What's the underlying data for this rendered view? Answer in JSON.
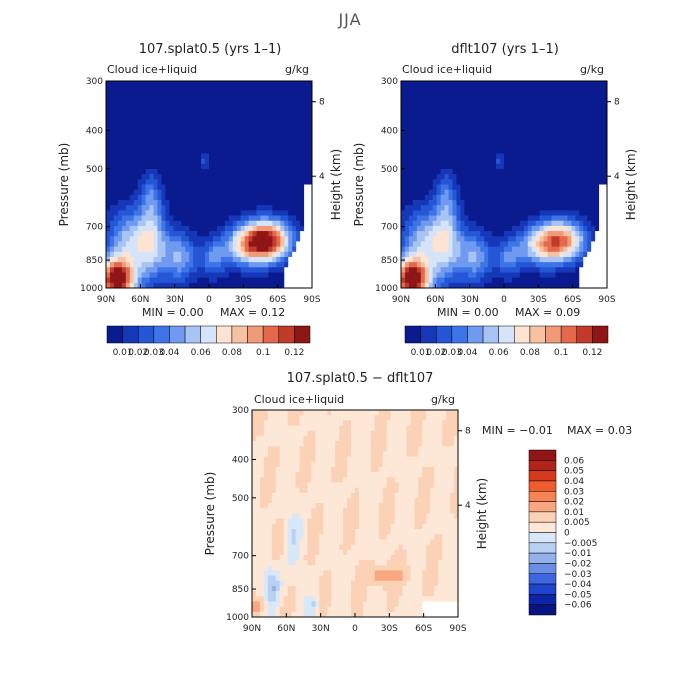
{
  "supertitle": "JJA",
  "panels": [
    {
      "id": "p1",
      "title": "107.splat0.5 (yrs 1–1)",
      "subtitle": "Cloud ice+liquid",
      "units": "g/kg",
      "min": "MIN =   0.00",
      "max": "MAX =   0.12"
    },
    {
      "id": "p2",
      "title": "dflt107 (yrs 1–1)",
      "subtitle": "Cloud ice+liquid",
      "units": "g/kg",
      "min": "MIN =   0.00",
      "max": "MAX =   0.09"
    },
    {
      "id": "p3",
      "title": "107.splat0.5 − dflt107",
      "subtitle": "Cloud ice+liquid",
      "units": "g/kg",
      "min": "MIN =  −0.01",
      "max": "MAX =   0.03"
    }
  ],
  "chart_data": [
    {
      "type": "heatmap",
      "title": "107.splat0.5 (yrs 1–1)",
      "subtitle": "Cloud ice+liquid",
      "units": "g/kg",
      "xlabel": "",
      "ylabel": "Pressure (mb)",
      "y2label": "Height (km)",
      "x_ticks": [
        "90N",
        "60N",
        "30N",
        "0",
        "30S",
        "60S",
        "90S"
      ],
      "y_ticks": [
        300,
        400,
        500,
        700,
        850,
        1000
      ],
      "y2_ticks": [
        8,
        4
      ],
      "ylim": [
        1000,
        300
      ],
      "xlim": [
        90,
        -90
      ],
      "colorbar_levels": [
        "0.01",
        "0.02",
        "0.03",
        "0.04",
        "0.06",
        "0.08",
        "0.1",
        "0.12"
      ],
      "min": 0.0,
      "max": 0.12
    },
    {
      "type": "heatmap",
      "title": "dflt107 (yrs 1–1)",
      "subtitle": "Cloud ice+liquid",
      "units": "g/kg",
      "xlabel": "",
      "ylabel": "Pressure (mb)",
      "y2label": "Height (km)",
      "x_ticks": [
        "90N",
        "60N",
        "30N",
        "0",
        "30S",
        "60S",
        "90S"
      ],
      "y_ticks": [
        300,
        400,
        500,
        700,
        850,
        1000
      ],
      "y2_ticks": [
        8,
        4
      ],
      "ylim": [
        1000,
        300
      ],
      "xlim": [
        90,
        -90
      ],
      "colorbar_levels": [
        "0.01",
        "0.02",
        "0.03",
        "0.04",
        "0.06",
        "0.08",
        "0.1",
        "0.12"
      ],
      "min": 0.0,
      "max": 0.09
    },
    {
      "type": "heatmap",
      "title": "107.splat0.5 − dflt107",
      "subtitle": "Cloud ice+liquid",
      "units": "g/kg",
      "xlabel": "",
      "ylabel": "Pressure (mb)",
      "y2label": "Height (km)",
      "x_ticks": [
        "90N",
        "60N",
        "30N",
        "0",
        "30S",
        "60S",
        "90S"
      ],
      "y_ticks": [
        300,
        400,
        500,
        700,
        850,
        1000
      ],
      "y2_ticks": [
        8,
        4
      ],
      "ylim": [
        1000,
        300
      ],
      "xlim": [
        90,
        -90
      ],
      "colorbar_levels": [
        "0.06",
        "0.05",
        "0.04",
        "0.03",
        "0.02",
        "0.01",
        "0.005",
        "0",
        "−0.005",
        "−0.01",
        "−0.02",
        "−0.03",
        "−0.04",
        "−0.05",
        "−0.06"
      ],
      "min": -0.01,
      "max": 0.03
    }
  ],
  "colors": {
    "seq": [
      "#0a1a8f",
      "#1638b8",
      "#2456d6",
      "#3d74e8",
      "#6f9af0",
      "#a8c4f4",
      "#d5e4f8",
      "#fde4d2",
      "#f7c2a2",
      "#f19a78",
      "#e4684c",
      "#c23a2a",
      "#8e1616"
    ],
    "diff": [
      "#8e1616",
      "#b32418",
      "#d63a1c",
      "#ef5c2e",
      "#f58455",
      "#f8a780",
      "#fbd2b6",
      "#fde8d8",
      "#d9e8f8",
      "#b8d0f2",
      "#93b2ec",
      "#6a8ee6",
      "#3e66e0",
      "#1f44cc",
      "#0c24a6",
      "#071580"
    ]
  }
}
